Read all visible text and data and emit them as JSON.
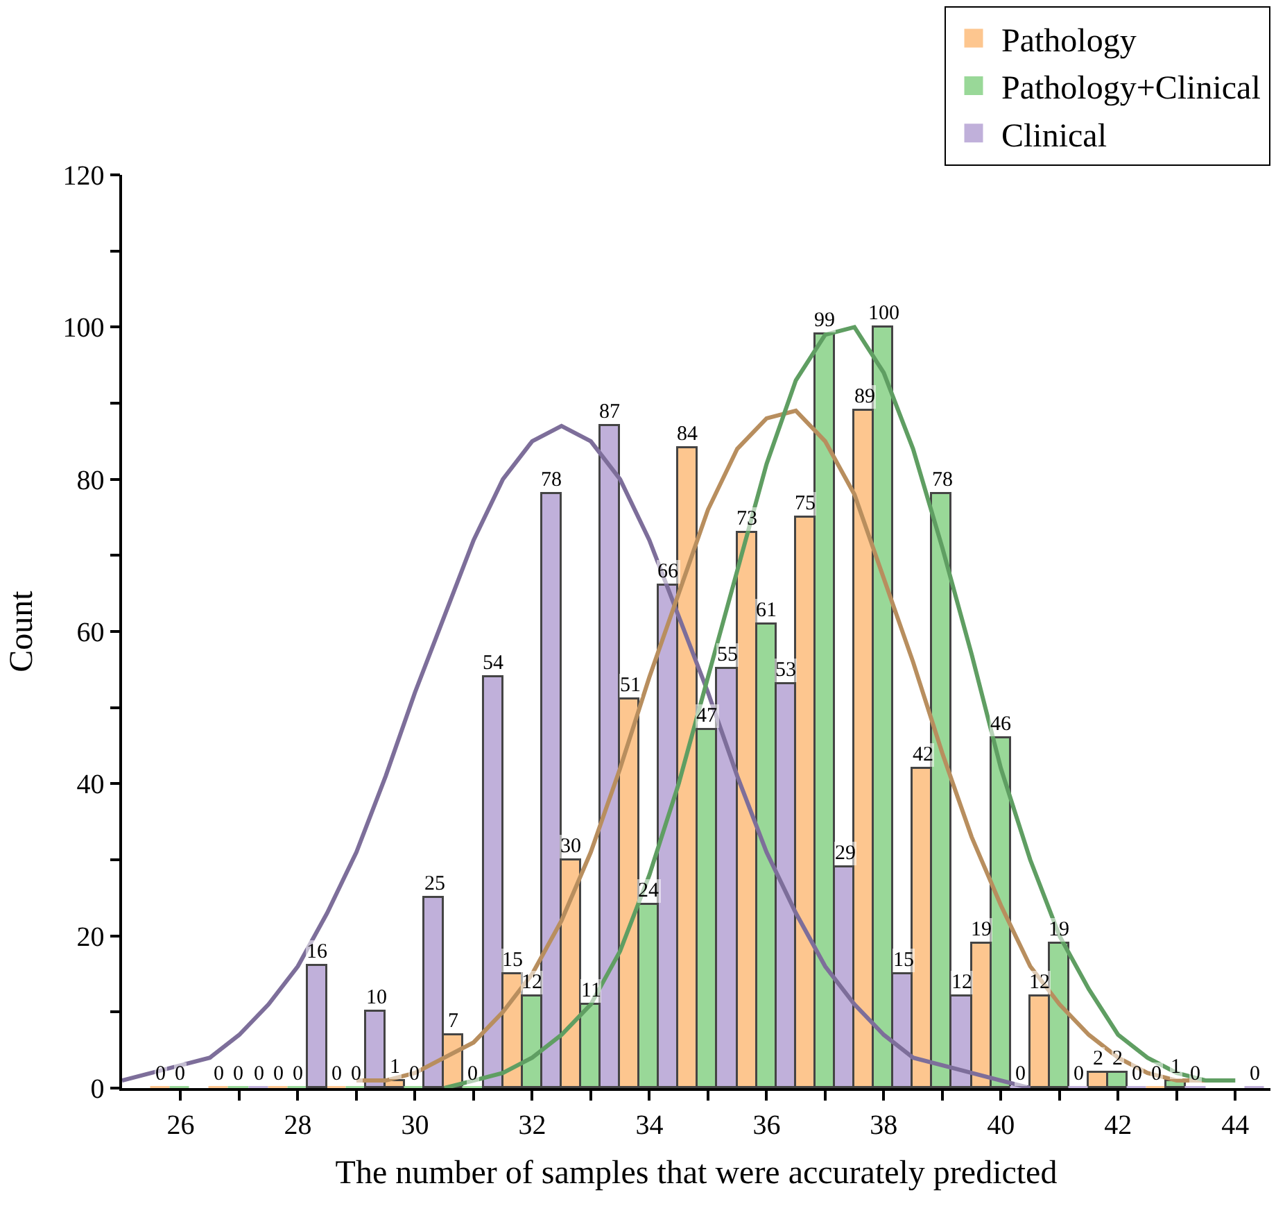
{
  "chart_data": {
    "type": "bar",
    "xlabel": "The number of samples that were accurately predicted",
    "ylabel": "Count",
    "x": [
      26,
      27,
      28,
      29,
      30,
      31,
      32,
      33,
      34,
      35,
      36,
      37,
      38,
      39,
      40,
      41,
      42,
      43,
      44
    ],
    "series": [
      {
        "name": "Pathology",
        "color": "#fdc68f",
        "values": [
          0,
          0,
          0,
          0,
          1,
          7,
          15,
          30,
          51,
          84,
          73,
          75,
          89,
          42,
          19,
          12,
          2,
          0,
          null
        ],
        "value_labels": [
          "0",
          "0",
          "0",
          "0",
          "1",
          "7",
          "15",
          "30",
          "51",
          "84",
          "73",
          "75",
          "89",
          "42",
          "19",
          "12",
          "2",
          "0",
          null
        ]
      },
      {
        "name": "Pathology+Clinical",
        "color": "#99d898",
        "values": [
          0,
          0,
          0,
          0,
          0,
          0,
          12,
          11,
          24,
          47,
          61,
          99,
          100,
          78,
          46,
          19,
          2,
          1,
          null
        ],
        "value_labels": [
          "0",
          "0",
          "0",
          "0",
          "0",
          "0",
          "12",
          "11",
          "24",
          "47",
          "61",
          "99",
          "100",
          "78",
          "46",
          "19",
          "2",
          "1",
          null
        ]
      },
      {
        "name": "Clinical",
        "color": "#c0b0da",
        "values": [
          null,
          0,
          16,
          10,
          25,
          54,
          78,
          87,
          66,
          55,
          53,
          29,
          15,
          12,
          0,
          0,
          0,
          0,
          0
        ],
        "value_labels": [
          null,
          "0",
          "16",
          "10",
          "25",
          "54",
          "78",
          "87",
          "66",
          "55",
          "53",
          "29",
          "15",
          "12",
          "0",
          "0",
          "0",
          "0",
          "0"
        ]
      },
      {
        "type": "line",
        "color": "#7d6e9a",
        "x": [
          25,
          25.5,
          26,
          26.5,
          27,
          27.5,
          28,
          28.5,
          29,
          29.5,
          30,
          30.5,
          31,
          31.5,
          32,
          32.5,
          33,
          33.5,
          34,
          34.5,
          35,
          35.5,
          36,
          36.5,
          37,
          37.5,
          38,
          38.5,
          39,
          39.5,
          40,
          40.5
        ],
        "values": [
          1,
          2,
          3,
          4,
          7,
          11,
          16,
          23,
          31,
          41,
          52,
          62,
          72,
          80,
          85,
          87,
          85,
          80,
          72,
          62,
          52,
          41,
          31,
          23,
          16,
          11,
          7,
          4,
          3,
          2,
          1,
          0
        ]
      },
      {
        "type": "line",
        "color": "#b88e5e",
        "x": [
          29,
          29.5,
          30,
          30.5,
          31,
          31.5,
          32,
          32.5,
          33,
          33.5,
          34,
          34.5,
          35,
          35.5,
          36,
          36.5,
          37,
          37.5,
          38,
          38.5,
          39,
          39.5,
          40,
          40.5,
          41,
          41.5,
          42,
          42.5,
          43,
          43.5
        ],
        "values": [
          1,
          1,
          2,
          4,
          6,
          10,
          15,
          22,
          31,
          42,
          54,
          65,
          76,
          84,
          88,
          89,
          85,
          78,
          67,
          56,
          44,
          33,
          24,
          16,
          11,
          7,
          4,
          2,
          1,
          1
        ]
      },
      {
        "type": "line",
        "color": "#5f9e62",
        "x": [
          30.5,
          31,
          31.5,
          32,
          32.5,
          33,
          33.5,
          34,
          34.5,
          35,
          35.5,
          36,
          36.5,
          37,
          37.5,
          38,
          38.5,
          39,
          39.5,
          40,
          40.5,
          41,
          41.5,
          42,
          42.5,
          43,
          43.5,
          44
        ],
        "values": [
          0,
          1,
          2,
          4,
          7,
          11,
          18,
          28,
          40,
          54,
          68,
          82,
          93,
          99,
          100,
          94,
          84,
          71,
          57,
          42,
          30,
          20,
          13,
          7,
          4,
          2,
          1,
          1
        ]
      }
    ],
    "xlim": [
      25,
      44.6
    ],
    "xticks": [
      26,
      {
        "value": 27,
        "label": null
      },
      28,
      {
        "value": 29,
        "label": null
      },
      30,
      {
        "value": 31,
        "label": null
      },
      32,
      {
        "value": 33,
        "label": null
      },
      34,
      {
        "value": 35,
        "label": null
      },
      36,
      {
        "value": 37,
        "label": null
      },
      38,
      {
        "value": 39,
        "label": null
      },
      40,
      {
        "value": 41,
        "label": null
      },
      42,
      {
        "value": 43,
        "label": null
      },
      44
    ],
    "ylim": [
      0,
      120
    ],
    "yticks": [
      0,
      {
        "value": 10,
        "label": null
      },
      20,
      {
        "value": 30,
        "label": null
      },
      40,
      {
        "value": 50,
        "label": null
      },
      60,
      {
        "value": 70,
        "label": null
      },
      80,
      {
        "value": 90,
        "label": null
      },
      100,
      {
        "value": 110,
        "label": null
      },
      120
    ],
    "legend": "top right"
  }
}
